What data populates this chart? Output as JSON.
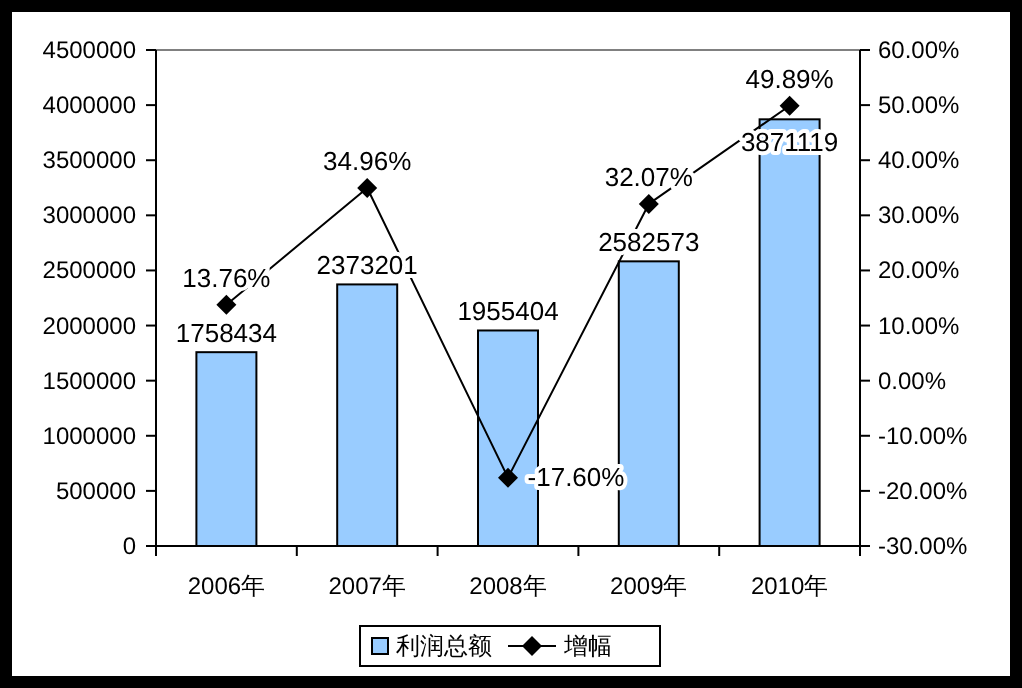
{
  "chart_data": {
    "type": "bar",
    "categories": [
      "2006年",
      "2007年",
      "2008年",
      "2009年",
      "2010年"
    ],
    "series": [
      {
        "name": "利润总额",
        "axis": "y",
        "color": "#99ccff",
        "values": [
          1758434,
          2373201,
          1955404,
          2582573,
          3871119
        ],
        "value_labels": [
          "1758434",
          "2373201",
          "1955404",
          "2582573",
          "3871119"
        ]
      },
      {
        "name": "增幅",
        "type": "line",
        "axis": "y2",
        "color": "#000000",
        "marker": "diamond",
        "values": [
          13.76,
          34.96,
          -17.6,
          32.07,
          49.89
        ],
        "value_labels": [
          "13.76%",
          "34.96%",
          "-17.60%",
          "32.07%",
          "49.89%"
        ]
      }
    ],
    "ylim": [
      0,
      4500000
    ],
    "yticks": [
      0,
      500000,
      1000000,
      1500000,
      2000000,
      2500000,
      3000000,
      3500000,
      4000000,
      4500000
    ],
    "y2lim": [
      -30,
      60
    ],
    "y2ticks": [
      {
        "value": -30,
        "label": "-30.00%"
      },
      {
        "value": -20,
        "label": "-20.00%"
      },
      {
        "value": -10,
        "label": "-10.00%"
      },
      {
        "value": 0,
        "label": "0.00%"
      },
      {
        "value": 10,
        "label": "10.00%"
      },
      {
        "value": 20,
        "label": "20.00%"
      },
      {
        "value": 30,
        "label": "30.00%"
      },
      {
        "value": 40,
        "label": "40.00%"
      },
      {
        "value": 50,
        "label": "50.00%"
      },
      {
        "value": 60,
        "label": "60.00%"
      }
    ],
    "grid": false,
    "legend": "bottom"
  }
}
